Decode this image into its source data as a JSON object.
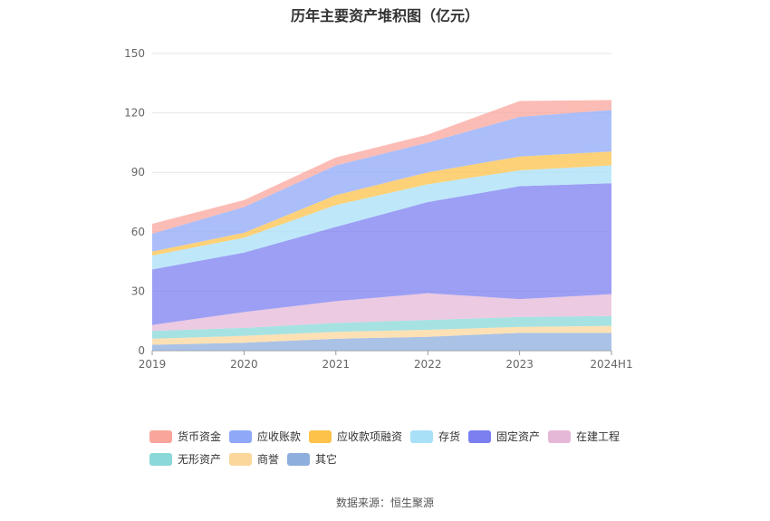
{
  "chart_data": {
    "type": "area",
    "stacked": true,
    "title": "历年主要资产堆积图（亿元）",
    "xlabel": "",
    "ylabel": "",
    "categories": [
      "2019",
      "2020",
      "2021",
      "2022",
      "2023",
      "2024H1"
    ],
    "ylim": [
      0,
      150
    ],
    "yticks": [
      0,
      30,
      60,
      90,
      120,
      150
    ],
    "series": [
      {
        "name": "其它",
        "color": "#8eaedd",
        "values": [
          3,
          4,
          6,
          7,
          9,
          9
        ]
      },
      {
        "name": "商誉",
        "color": "#fcd79c",
        "values": [
          3,
          3.5,
          3.5,
          3.5,
          3,
          3.5
        ]
      },
      {
        "name": "无形资产",
        "color": "#8ad8d8",
        "values": [
          4,
          4,
          4.5,
          5,
          5,
          5
        ]
      },
      {
        "name": "在建工程",
        "color": "#e6b8d8",
        "values": [
          3,
          8,
          11,
          13.5,
          9,
          11
        ]
      },
      {
        "name": "固定资产",
        "color": "#7b7ff0",
        "values": [
          28,
          30,
          37.5,
          46,
          57,
          56
        ]
      },
      {
        "name": "存货",
        "color": "#a8e0f8",
        "values": [
          7,
          7.5,
          11,
          9,
          8,
          9
        ]
      },
      {
        "name": "应收款项融资",
        "color": "#fcc24a",
        "values": [
          2,
          2.5,
          5,
          6,
          7,
          7
        ]
      },
      {
        "name": "应收账款",
        "color": "#8fa8f8",
        "values": [
          9,
          13,
          15,
          15,
          20,
          21
        ]
      },
      {
        "name": "货币资金",
        "color": "#f9a59c",
        "values": [
          5,
          3.5,
          4,
          4,
          8,
          5
        ]
      }
    ],
    "legend_order": [
      "货币资金",
      "应收账款",
      "应收款项融资",
      "存货",
      "固定资产",
      "在建工程",
      "无形资产",
      "商誉",
      "其它"
    ],
    "legend_position": "bottom"
  },
  "source_text": "数据来源：恒生聚源"
}
